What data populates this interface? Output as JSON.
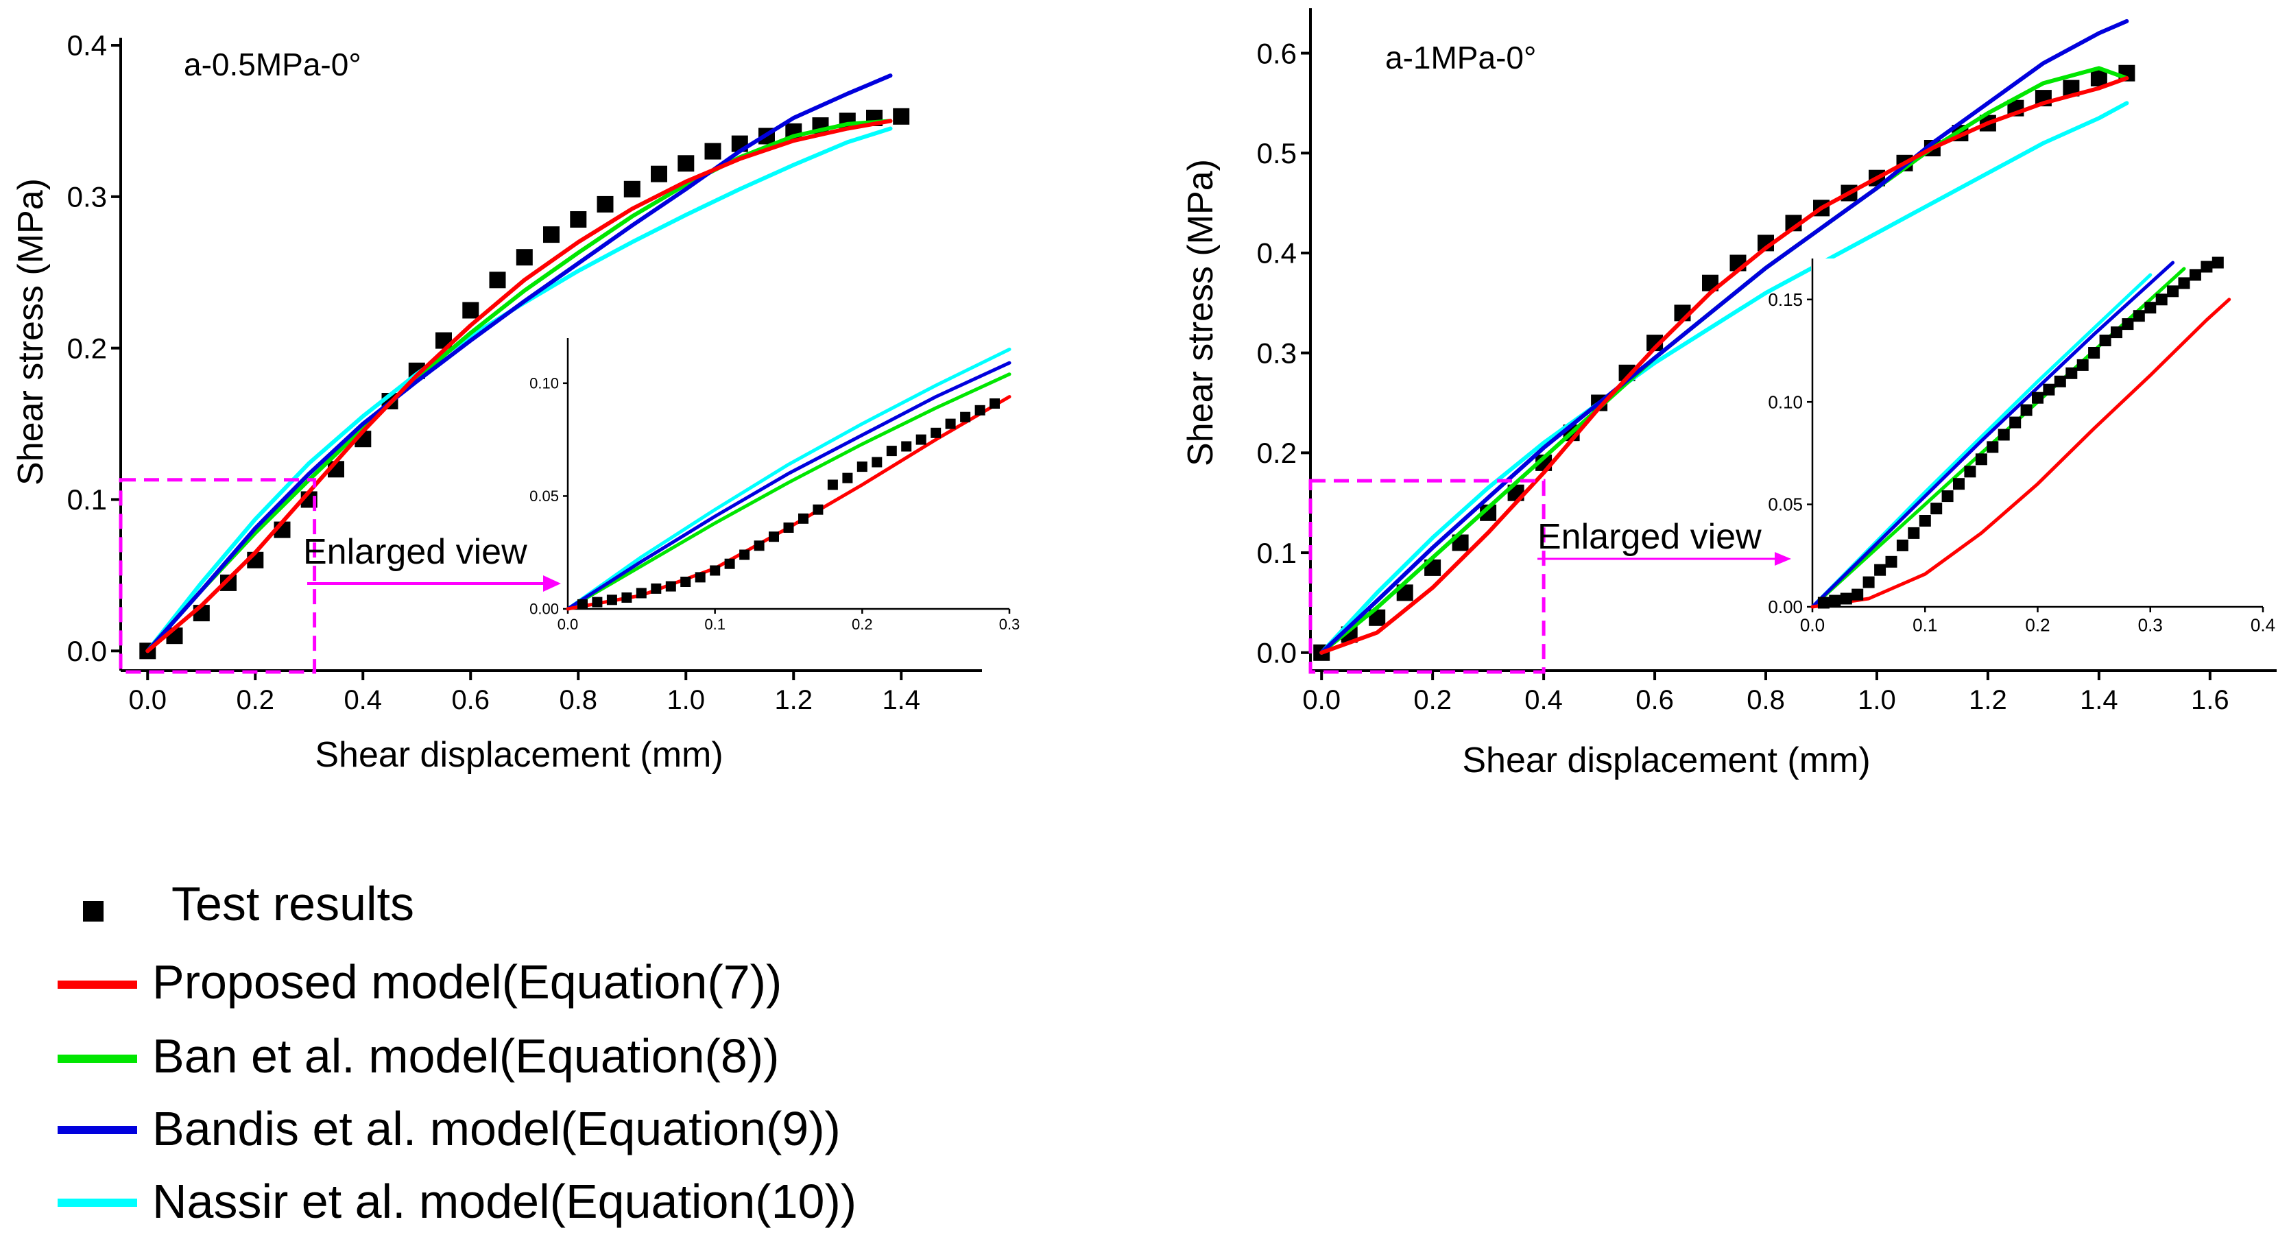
{
  "figure": {
    "legend": [
      {
        "key": "test",
        "label": "Test results",
        "color": "#000000",
        "symbol": "square"
      },
      {
        "key": "proposed",
        "label": "Proposed model(Equation(7))",
        "color": "#ff0000",
        "symbol": "line"
      },
      {
        "key": "ban",
        "label": "Ban et al. model(Equation(8))",
        "color": "#00e600",
        "symbol": "line"
      },
      {
        "key": "bandis",
        "label": "Bandis et al. model(Equation(9))",
        "color": "#0000dd",
        "symbol": "line"
      },
      {
        "key": "nassir",
        "label": "Nassir et al. model(Equation(10))",
        "color": "#00ffff",
        "symbol": "line"
      }
    ]
  },
  "chart_data": [
    {
      "type": "line",
      "title": "a-0.5MPa-0°",
      "xlabel": "Shear displacement (mm)",
      "ylabel": "Shear stress (MPa)",
      "xlim": [
        -0.05,
        1.55
      ],
      "ylim": [
        -0.013,
        0.405
      ],
      "xticks": [
        "0.0",
        "0.2",
        "0.4",
        "0.6",
        "0.8",
        "1.0",
        "1.2",
        "1.4"
      ],
      "yticks": [
        "0.0",
        "0.1",
        "0.2",
        "0.3",
        "0.4"
      ],
      "highlight_box": {
        "x": [
          -0.05,
          0.31
        ],
        "y": [
          -0.013,
          0.113
        ]
      },
      "annotation": "Enlarged view",
      "test_points": {
        "x": [
          0.0,
          0.05,
          0.1,
          0.15,
          0.2,
          0.25,
          0.3,
          0.35,
          0.4,
          0.45,
          0.5,
          0.55,
          0.6,
          0.65,
          0.7,
          0.75,
          0.8,
          0.85,
          0.9,
          0.95,
          1.0,
          1.05,
          1.1,
          1.15,
          1.2,
          1.25,
          1.3,
          1.35,
          1.4
        ],
        "y": [
          0.0,
          0.01,
          0.025,
          0.045,
          0.06,
          0.08,
          0.1,
          0.12,
          0.14,
          0.165,
          0.185,
          0.205,
          0.225,
          0.245,
          0.26,
          0.275,
          0.285,
          0.295,
          0.305,
          0.315,
          0.322,
          0.33,
          0.335,
          0.34,
          0.343,
          0.347,
          0.35,
          0.352,
          0.353
        ]
      },
      "series": [
        {
          "name": "Proposed model(Equation(7))",
          "key": "proposed",
          "x": [
            0.0,
            0.1,
            0.2,
            0.3,
            0.4,
            0.5,
            0.6,
            0.7,
            0.8,
            0.9,
            1.0,
            1.1,
            1.2,
            1.3,
            1.38
          ],
          "y": [
            0.0,
            0.03,
            0.065,
            0.105,
            0.145,
            0.182,
            0.215,
            0.245,
            0.27,
            0.292,
            0.31,
            0.325,
            0.337,
            0.345,
            0.35
          ]
        },
        {
          "name": "Ban et al. model(Equation(8))",
          "key": "ban",
          "x": [
            0.0,
            0.1,
            0.2,
            0.3,
            0.4,
            0.5,
            0.6,
            0.7,
            0.8,
            0.9,
            1.0,
            1.1,
            1.2,
            1.3,
            1.38
          ],
          "y": [
            0.0,
            0.04,
            0.078,
            0.113,
            0.147,
            0.18,
            0.21,
            0.238,
            0.263,
            0.287,
            0.308,
            0.326,
            0.34,
            0.348,
            0.35
          ]
        },
        {
          "name": "Bandis et al. model(Equation(9))",
          "key": "bandis",
          "x": [
            0.0,
            0.1,
            0.2,
            0.3,
            0.4,
            0.5,
            0.6,
            0.7,
            0.8,
            0.9,
            1.0,
            1.1,
            1.2,
            1.3,
            1.38
          ],
          "y": [
            0.0,
            0.04,
            0.081,
            0.117,
            0.15,
            0.178,
            0.205,
            0.231,
            0.256,
            0.281,
            0.305,
            0.33,
            0.352,
            0.368,
            0.38
          ]
        },
        {
          "name": "Nassir et al. model(Equation(10))",
          "key": "nassir",
          "x": [
            0.0,
            0.1,
            0.2,
            0.3,
            0.4,
            0.5,
            0.6,
            0.7,
            0.8,
            0.9,
            1.0,
            1.1,
            1.2,
            1.3,
            1.38
          ],
          "y": [
            0.0,
            0.045,
            0.087,
            0.124,
            0.155,
            0.183,
            0.208,
            0.23,
            0.251,
            0.27,
            0.288,
            0.305,
            0.321,
            0.336,
            0.345
          ]
        }
      ],
      "inset": {
        "xlim": [
          0,
          0.3
        ],
        "ylim": [
          0,
          0.12
        ],
        "xticks": [
          "0.0",
          "0.1",
          "0.2",
          "0.3"
        ],
        "yticks": [
          "0.00",
          "0.05",
          "0.10"
        ],
        "test_points": {
          "x": [
            0.01,
            0.02,
            0.03,
            0.04,
            0.05,
            0.06,
            0.07,
            0.08,
            0.09,
            0.1,
            0.11,
            0.12,
            0.13,
            0.14,
            0.15,
            0.16,
            0.17,
            0.18,
            0.19,
            0.2,
            0.21,
            0.22,
            0.23,
            0.24,
            0.25,
            0.26,
            0.27,
            0.28,
            0.29
          ],
          "y": [
            0.002,
            0.003,
            0.004,
            0.005,
            0.007,
            0.009,
            0.01,
            0.012,
            0.014,
            0.017,
            0.02,
            0.024,
            0.028,
            0.032,
            0.036,
            0.04,
            0.044,
            0.055,
            0.058,
            0.063,
            0.065,
            0.07,
            0.072,
            0.075,
            0.078,
            0.082,
            0.085,
            0.088,
            0.091
          ]
        },
        "series": [
          {
            "key": "proposed",
            "x": [
              0,
              0.05,
              0.1,
              0.15,
              0.2,
              0.25,
              0.3
            ],
            "y": [
              0,
              0.006,
              0.018,
              0.036,
              0.055,
              0.075,
              0.094
            ]
          },
          {
            "key": "ban",
            "x": [
              0,
              0.05,
              0.1,
              0.15,
              0.2,
              0.25,
              0.3
            ],
            "y": [
              0,
              0.019,
              0.038,
              0.056,
              0.073,
              0.089,
              0.104
            ]
          },
          {
            "key": "bandis",
            "x": [
              0,
              0.05,
              0.1,
              0.15,
              0.2,
              0.25,
              0.3
            ],
            "y": [
              0,
              0.021,
              0.041,
              0.06,
              0.077,
              0.094,
              0.109
            ]
          },
          {
            "key": "nassir",
            "x": [
              0,
              0.05,
              0.1,
              0.15,
              0.2,
              0.25,
              0.3
            ],
            "y": [
              0,
              0.023,
              0.044,
              0.064,
              0.082,
              0.099,
              0.115
            ]
          }
        ]
      }
    },
    {
      "type": "line",
      "title": "a-1MPa-0°",
      "xlabel": "Shear displacement (mm)",
      "ylabel": "Shear stress (MPa)",
      "xlim": [
        -0.02,
        1.72
      ],
      "ylim": [
        -0.018,
        0.645
      ],
      "xticks": [
        "0.0",
        "0.2",
        "0.4",
        "0.6",
        "0.8",
        "1.0",
        "1.2",
        "1.4",
        "1.6"
      ],
      "yticks": [
        "0.0",
        "0.1",
        "0.2",
        "0.3",
        "0.4",
        "0.5",
        "0.6"
      ],
      "highlight_box": {
        "x": [
          -0.02,
          0.4
        ],
        "y": [
          -0.018,
          0.172
        ]
      },
      "annotation": "Enlarged view",
      "test_points": {
        "x": [
          0.0,
          0.05,
          0.1,
          0.15,
          0.2,
          0.25,
          0.3,
          0.35,
          0.4,
          0.45,
          0.5,
          0.55,
          0.6,
          0.65,
          0.7,
          0.75,
          0.8,
          0.85,
          0.9,
          0.95,
          1.0,
          1.05,
          1.1,
          1.15,
          1.2,
          1.25,
          1.3,
          1.35,
          1.4,
          1.45
        ],
        "y": [
          0.0,
          0.018,
          0.035,
          0.06,
          0.085,
          0.11,
          0.14,
          0.16,
          0.19,
          0.22,
          0.25,
          0.28,
          0.31,
          0.34,
          0.37,
          0.39,
          0.41,
          0.43,
          0.445,
          0.46,
          0.475,
          0.49,
          0.505,
          0.52,
          0.53,
          0.545,
          0.555,
          0.565,
          0.575,
          0.58
        ]
      },
      "series": [
        {
          "name": "Proposed model(Equation(7))",
          "key": "proposed",
          "x": [
            0.0,
            0.1,
            0.2,
            0.3,
            0.4,
            0.5,
            0.6,
            0.7,
            0.8,
            0.9,
            1.0,
            1.1,
            1.2,
            1.3,
            1.4,
            1.45
          ],
          "y": [
            0.0,
            0.02,
            0.065,
            0.12,
            0.18,
            0.245,
            0.305,
            0.36,
            0.405,
            0.445,
            0.475,
            0.505,
            0.53,
            0.55,
            0.565,
            0.575
          ]
        },
        {
          "name": "Ban et al. model(Equation(8))",
          "key": "ban",
          "x": [
            0.0,
            0.1,
            0.2,
            0.3,
            0.4,
            0.5,
            0.6,
            0.7,
            0.8,
            0.9,
            1.0,
            1.1,
            1.2,
            1.3,
            1.4,
            1.45
          ],
          "y": [
            0.0,
            0.045,
            0.095,
            0.145,
            0.195,
            0.245,
            0.295,
            0.34,
            0.385,
            0.425,
            0.465,
            0.505,
            0.54,
            0.57,
            0.585,
            0.575
          ]
        },
        {
          "name": "Bandis et al. model(Equation(9))",
          "key": "bandis",
          "x": [
            0.0,
            0.1,
            0.2,
            0.3,
            0.4,
            0.5,
            0.6,
            0.7,
            0.8,
            0.9,
            1.0,
            1.1,
            1.2,
            1.3,
            1.4,
            1.45
          ],
          "y": [
            0.0,
            0.052,
            0.105,
            0.155,
            0.205,
            0.25,
            0.295,
            0.34,
            0.385,
            0.425,
            0.465,
            0.51,
            0.55,
            0.59,
            0.62,
            0.632
          ]
        },
        {
          "name": "Nassir et al. model(Equation(10))",
          "key": "nassir",
          "x": [
            0.0,
            0.1,
            0.2,
            0.3,
            0.4,
            0.5,
            0.6,
            0.7,
            0.8,
            0.9,
            1.0,
            1.1,
            1.2,
            1.3,
            1.4,
            1.45
          ],
          "y": [
            0.0,
            0.06,
            0.115,
            0.165,
            0.21,
            0.25,
            0.29,
            0.325,
            0.36,
            0.39,
            0.42,
            0.45,
            0.48,
            0.51,
            0.535,
            0.55
          ]
        }
      ],
      "inset": {
        "xlim": [
          0,
          0.4
        ],
        "ylim": [
          0,
          0.17
        ],
        "xticks": [
          "0.0",
          "0.1",
          "0.2",
          "0.3",
          "0.4"
        ],
        "yticks": [
          "0.00",
          "0.05",
          "0.10",
          "0.15"
        ],
        "test_points": {
          "x": [
            0.01,
            0.02,
            0.03,
            0.04,
            0.05,
            0.06,
            0.07,
            0.08,
            0.09,
            0.1,
            0.11,
            0.12,
            0.13,
            0.14,
            0.15,
            0.16,
            0.17,
            0.18,
            0.19,
            0.2,
            0.21,
            0.22,
            0.23,
            0.24,
            0.25,
            0.26,
            0.27,
            0.28,
            0.29,
            0.3,
            0.31,
            0.32,
            0.33,
            0.34,
            0.35,
            0.36
          ],
          "y": [
            0.002,
            0.003,
            0.004,
            0.006,
            0.012,
            0.018,
            0.022,
            0.03,
            0.036,
            0.042,
            0.048,
            0.054,
            0.06,
            0.066,
            0.072,
            0.078,
            0.084,
            0.09,
            0.096,
            0.102,
            0.106,
            0.11,
            0.114,
            0.118,
            0.124,
            0.13,
            0.134,
            0.138,
            0.142,
            0.146,
            0.15,
            0.154,
            0.158,
            0.162,
            0.166,
            0.168
          ]
        },
        "series": [
          {
            "key": "proposed",
            "x": [
              0,
              0.05,
              0.1,
              0.15,
              0.2,
              0.25,
              0.3,
              0.35,
              0.37
            ],
            "y": [
              0,
              0.004,
              0.016,
              0.036,
              0.06,
              0.087,
              0.113,
              0.14,
              0.15
            ]
          },
          {
            "key": "ban",
            "x": [
              0,
              0.05,
              0.1,
              0.15,
              0.2,
              0.25,
              0.3,
              0.33
            ],
            "y": [
              0,
              0.025,
              0.05,
              0.075,
              0.1,
              0.125,
              0.15,
              0.165
            ]
          },
          {
            "key": "bandis",
            "x": [
              0,
              0.05,
              0.1,
              0.15,
              0.2,
              0.25,
              0.3,
              0.32
            ],
            "y": [
              0,
              0.027,
              0.054,
              0.081,
              0.107,
              0.133,
              0.158,
              0.168
            ]
          },
          {
            "key": "nassir",
            "x": [
              0,
              0.05,
              0.1,
              0.15,
              0.2,
              0.25,
              0.3
            ],
            "y": [
              0,
              0.028,
              0.056,
              0.083,
              0.11,
              0.136,
              0.162
            ]
          }
        ]
      }
    }
  ]
}
